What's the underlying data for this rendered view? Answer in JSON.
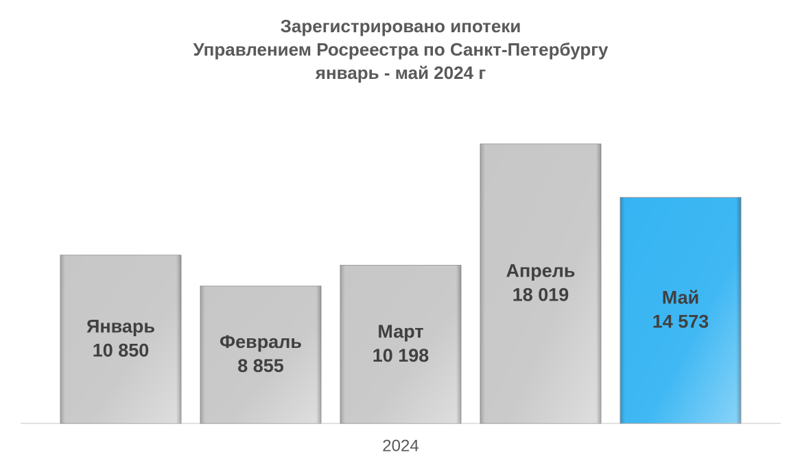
{
  "chart_data": {
    "type": "bar",
    "title": [
      "Зарегистрировано ипотеки",
      "Управлением Росреестра по Санкт-Петербургу",
      "январь - май 2024 г"
    ],
    "x_label": "2024",
    "categories": [
      "Январь",
      "Февраль",
      "Март",
      "Апрель",
      "Май"
    ],
    "values": [
      10850,
      8855,
      10198,
      18019,
      14573
    ],
    "value_labels": [
      "10 850",
      "8 855",
      "10 198",
      "18 019",
      "14 573"
    ],
    "colors": [
      "#c4c4c4",
      "#c4c4c4",
      "#c4c4c4",
      "#c4c4c4",
      "#2ab0f2"
    ],
    "ylim": [
      0,
      20000
    ]
  }
}
